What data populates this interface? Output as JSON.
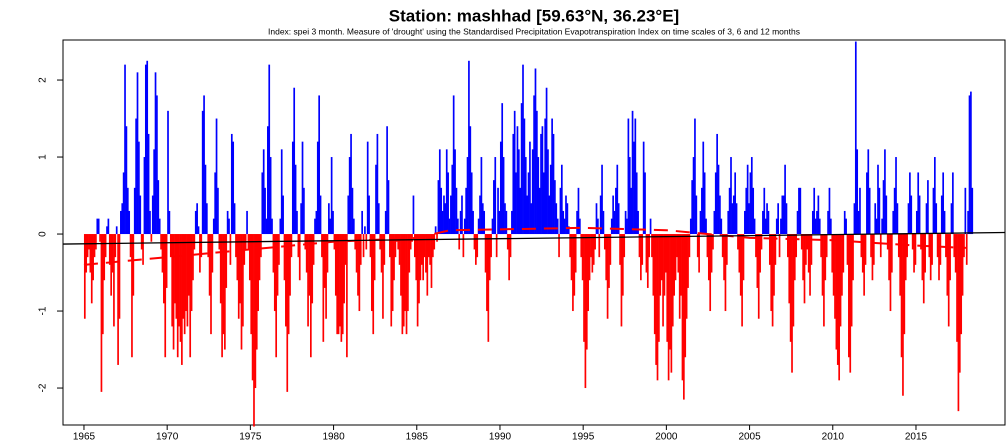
{
  "chart_data": {
    "type": "bar",
    "title": "Station: mashhad [59.63°N, 36.23°E]",
    "subtitle": "Index: spei 3 month. Measure of 'drought' using the Standardised Precipitation Evapotranspiration Index on time scales of 3, 6 and 12 months",
    "positive_color": "#0000ff",
    "negative_color": "#ff0000",
    "xlim": [
      1963.74,
      2020.35
    ],
    "ylim": [
      -2.48,
      2.52
    ],
    "xticks": [
      1965,
      1970,
      1975,
      1980,
      1985,
      1990,
      1995,
      2000,
      2005,
      2010,
      2015
    ],
    "yticks": [
      -2,
      -1,
      0,
      1,
      2
    ],
    "years": [
      {
        "year": 1965,
        "values": [
          -1.1,
          -0.5,
          -0.3,
          -0.2,
          -0.5,
          -0.9,
          -0.6,
          -0.3,
          -0.2,
          0.2,
          0.2,
          -0.1
        ]
      },
      {
        "year": 1966,
        "values": [
          -2.05,
          -1.3,
          -0.6,
          -0.3,
          0.1,
          0.2,
          -0.4,
          -0.8,
          -0.5,
          -1.2,
          -0.3,
          0.1
        ]
      },
      {
        "year": 1967,
        "values": [
          -1.7,
          -1.1,
          0.3,
          0.4,
          0.8,
          2.2,
          1.4,
          0.6,
          0.3,
          -0.3,
          -1.6,
          -0.8
        ]
      },
      {
        "year": 1968,
        "values": [
          0.6,
          1.5,
          2.1,
          1.2,
          0.5,
          -0.2,
          -0.4,
          1.0,
          2.2,
          2.25,
          1.3,
          0.3
        ]
      },
      {
        "year": 1969,
        "values": [
          -0.1,
          0.5,
          1.1,
          2.1,
          1.8,
          0.7,
          0.2,
          -0.2,
          -0.5,
          -0.9,
          -1.6,
          -0.7
        ]
      },
      {
        "year": 1970,
        "values": [
          1.6,
          0.3,
          -0.3,
          -1.2,
          -1.5,
          -0.9,
          -1.1,
          -1.6,
          -1.2,
          -1.4,
          -1.7,
          -1.1
        ]
      },
      {
        "year": 1971,
        "values": [
          -1.3,
          -1.0,
          -1.2,
          -0.8,
          -1.6,
          -1.0,
          -0.6,
          -0.2,
          0.3,
          0.4,
          0.1,
          -0.5
        ]
      },
      {
        "year": 1972,
        "values": [
          -0.3,
          1.6,
          1.8,
          0.9,
          0.4,
          -0.3,
          -0.8,
          -1.3,
          -0.5,
          0.2,
          0.8,
          1.5
        ]
      },
      {
        "year": 1973,
        "values": [
          0.6,
          -0.2,
          -0.9,
          -1.6,
          -1.3,
          -1.5,
          -0.7,
          0.3,
          0.2,
          -0.4,
          1.3,
          1.2
        ]
      },
      {
        "year": 1974,
        "values": [
          0.4,
          -0.3,
          -0.6,
          -1.1,
          -0.9,
          -1.5,
          -1.2,
          -0.4,
          -0.2,
          0.3,
          -0.2,
          -0.6
        ]
      },
      {
        "year": 1975,
        "values": [
          -1.3,
          -1.9,
          -2.5,
          -2.0,
          -1.5,
          -1.0,
          -0.6,
          -0.3,
          0.8,
          1.1,
          0.6,
          0.2
        ]
      },
      {
        "year": 1976,
        "values": [
          1.4,
          2.2,
          1.0,
          0.2,
          -0.5,
          -1.0,
          -1.6,
          -0.8,
          -0.4,
          0.2,
          1.1,
          0.5
        ]
      },
      {
        "year": 1977,
        "values": [
          -0.6,
          -1.2,
          -2.05,
          -1.3,
          -0.8,
          -0.3,
          1.2,
          1.9,
          0.9,
          0.3,
          -0.3,
          -0.6
        ]
      },
      {
        "year": 1978,
        "values": [
          0.4,
          1.2,
          0.6,
          -0.2,
          -0.5,
          -1.2,
          -0.8,
          -1.6,
          -0.9,
          -0.4,
          0.2,
          0.3
        ]
      },
      {
        "year": 1979,
        "values": [
          1.2,
          1.8,
          0.5,
          -0.3,
          -1.4,
          -0.7,
          -1.1,
          -0.5,
          0.4,
          0.2,
          1.0,
          0.3
        ]
      },
      {
        "year": 1980,
        "values": [
          -0.2,
          -0.8,
          -1.3,
          -1.3,
          -1.2,
          -1.4,
          -1.3,
          -0.9,
          -0.4,
          -1.6,
          0.5,
          1.0
        ]
      },
      {
        "year": 1981,
        "values": [
          1.3,
          0.6,
          0.2,
          -0.2,
          -0.5,
          -0.8,
          -1.0,
          -0.4,
          0.3,
          -0.3,
          0.1,
          -0.2
        ]
      },
      {
        "year": 1982,
        "values": [
          1.2,
          0.5,
          -0.3,
          -1.0,
          -1.3,
          -0.6,
          0.9,
          1.3,
          0.4,
          -0.2,
          -0.5,
          -1.1
        ]
      },
      {
        "year": 1983,
        "values": [
          -0.4,
          0.3,
          1.4,
          0.7,
          -0.3,
          -1.2,
          -1.0,
          -0.6,
          -0.3,
          -0.1,
          -0.2,
          -0.4
        ]
      },
      {
        "year": 1984,
        "values": [
          -0.8,
          -1.3,
          -1.2,
          -1.0,
          -1.3,
          -1.0,
          -0.5,
          -0.2,
          -0.1,
          0.5,
          -0.3,
          -0.6
        ]
      },
      {
        "year": 1985,
        "values": [
          -1.2,
          -0.9,
          -0.6,
          -0.4,
          -0.6,
          -0.3,
          -0.5,
          -0.8,
          -0.3,
          -0.4,
          -0.7,
          -0.3
        ]
      },
      {
        "year": 1986,
        "values": [
          -0.2,
          0.1,
          -0.1,
          0.7,
          1.1,
          0.6,
          0.3,
          0.5,
          0.4,
          1.1,
          0.8,
          0.2
        ]
      },
      {
        "year": 1987,
        "values": [
          0.5,
          0.9,
          1.8,
          1.1,
          0.6,
          0.2,
          -0.2,
          0.3,
          0.5,
          -0.3,
          0.2,
          0.6
        ]
      },
      {
        "year": 1988,
        "values": [
          1.0,
          2.25,
          1.4,
          0.8,
          0.3,
          -0.2,
          -0.4,
          -0.3,
          0.2,
          0.5,
          1.0,
          0.4
        ]
      },
      {
        "year": 1989,
        "values": [
          0.3,
          -0.5,
          -1.0,
          -1.4,
          -0.6,
          -0.3,
          0.2,
          0.7,
          1.0,
          -0.3,
          0.6,
          0.3
        ]
      },
      {
        "year": 1990,
        "values": [
          1.2,
          1.7,
          1.0,
          0.4,
          0.3,
          -0.2,
          -0.6,
          -0.3,
          0.3,
          1.3,
          1.6,
          0.8
        ]
      },
      {
        "year": 1991,
        "values": [
          1.4,
          1.1,
          0.6,
          1.7,
          2.2,
          1.5,
          1.0,
          0.5,
          0.8,
          1.2,
          0.4,
          1.1
        ]
      },
      {
        "year": 1992,
        "values": [
          1.8,
          2.15,
          1.6,
          1.0,
          0.6,
          1.3,
          1.4,
          0.8,
          1.5,
          1.9,
          1.1,
          0.5
        ]
      },
      {
        "year": 1993,
        "values": [
          0.9,
          1.5,
          1.3,
          0.7,
          0.4,
          0.2,
          -0.3,
          0.6,
          0.9,
          0.3,
          0.2,
          0.5
        ]
      },
      {
        "year": 1994,
        "values": [
          0.4,
          0.1,
          -0.3,
          -0.6,
          -1.0,
          -0.8,
          -0.5,
          0.3,
          0.6,
          0.2,
          -0.3,
          -0.6
        ]
      },
      {
        "year": 1995,
        "values": [
          -1.4,
          -2.0,
          -1.5,
          -1.0,
          -0.6,
          -0.3,
          -0.5,
          -0.4,
          -0.2,
          0.4,
          0.2,
          -0.3
        ]
      },
      {
        "year": 1996,
        "values": [
          0.5,
          0.9,
          0.3,
          -0.2,
          -0.6,
          -1.1,
          -0.7,
          -0.4,
          0.2,
          0.5,
          0.3,
          0.6
        ]
      },
      {
        "year": 1997,
        "values": [
          0.9,
          0.4,
          -0.4,
          -1.2,
          -0.8,
          -0.3,
          0.3,
          0.2,
          1.5,
          1.0,
          0.6,
          1.6
        ]
      },
      {
        "year": 1998,
        "values": [
          1.2,
          1.5,
          0.8,
          0.3,
          -0.3,
          -0.6,
          -0.4,
          1.2,
          0.8,
          -0.5,
          -0.7,
          -0.3
        ]
      },
      {
        "year": 1999,
        "values": [
          0.2,
          -0.3,
          -0.8,
          -1.3,
          -1.7,
          -1.9,
          -1.4,
          -0.8,
          -0.6,
          -1.2,
          -0.8,
          -0.5
        ]
      },
      {
        "year": 2000,
        "values": [
          -1.4,
          -1.9,
          -1.5,
          -1.8,
          -1.2,
          -0.8,
          -0.6,
          -0.3,
          -0.5,
          -1.1,
          -0.8,
          -1.9
        ]
      },
      {
        "year": 2001,
        "values": [
          -2.15,
          -1.6,
          -1.1,
          -0.7,
          -0.3,
          0.2,
          0.7,
          1.0,
          1.5,
          0.5,
          -0.3,
          -0.5
        ]
      },
      {
        "year": 2002,
        "values": [
          0.3,
          0.6,
          1.2,
          0.8,
          0.2,
          -0.3,
          -0.6,
          -1.0,
          -0.5,
          -0.2,
          0.3,
          0.8
        ]
      },
      {
        "year": 2003,
        "values": [
          1.3,
          0.9,
          0.5,
          0.2,
          -0.3,
          -0.6,
          -1.0,
          -0.4,
          0.3,
          0.6,
          1.0,
          0.4
        ]
      },
      {
        "year": 2004,
        "values": [
          0.5,
          0.8,
          0.4,
          -0.2,
          -0.5,
          -0.8,
          -1.2,
          -0.6,
          0.3,
          0.6,
          0.9,
          0.4
        ]
      },
      {
        "year": 2005,
        "values": [
          0.8,
          1.0,
          0.6,
          0.2,
          -0.3,
          -0.7,
          -1.1,
          -0.5,
          -0.2,
          0.3,
          0.6,
          0.2
        ]
      },
      {
        "year": 2006,
        "values": [
          0.4,
          0.3,
          -0.4,
          -1.0,
          -1.2,
          -0.8,
          -0.4,
          0.2,
          0.4,
          -0.3,
          0.2,
          0.5
        ]
      },
      {
        "year": 2007,
        "values": [
          0.5,
          0.9,
          0.4,
          -0.3,
          -0.9,
          -1.4,
          -1.8,
          -1.2,
          -0.6,
          -0.3,
          0.3,
          0.6
        ]
      },
      {
        "year": 2008,
        "values": [
          0.6,
          -0.2,
          -0.6,
          -0.9,
          -0.4,
          -0.2,
          -0.5,
          -0.8,
          -0.4,
          0.3,
          0.6,
          0.2
        ]
      },
      {
        "year": 2009,
        "values": [
          0.3,
          0.5,
          0.2,
          -0.3,
          -0.8,
          -1.2,
          -0.6,
          -0.3,
          0.3,
          0.6,
          0.2,
          -0.5
        ]
      },
      {
        "year": 2010,
        "values": [
          -0.8,
          -1.1,
          -1.5,
          -1.7,
          -1.9,
          -1.2,
          -0.8,
          -0.5,
          0.3,
          0.2,
          -0.4,
          -1.6
        ]
      },
      {
        "year": 2011,
        "values": [
          -1.8,
          -1.2,
          -0.6,
          0.4,
          2.5,
          1.1,
          0.3,
          0.6,
          -0.3,
          -0.5,
          -0.8,
          -0.4
        ]
      },
      {
        "year": 2012,
        "values": [
          0.8,
          1.1,
          0.6,
          -0.3,
          -0.6,
          -0.4,
          0.4,
          0.2,
          0.9,
          0.6,
          -0.3,
          0.2
        ]
      },
      {
        "year": 2013,
        "values": [
          0.7,
          1.1,
          0.5,
          -0.2,
          -0.6,
          -1.0,
          -0.5,
          0.3,
          0.6,
          1.0,
          0.4,
          -0.3
        ]
      },
      {
        "year": 2014,
        "values": [
          -0.8,
          -1.6,
          -2.1,
          -1.3,
          -0.6,
          -0.3,
          0.4,
          0.8,
          0.5,
          -0.2,
          -0.5,
          -0.4
        ]
      },
      {
        "year": 2015,
        "values": [
          0.3,
          0.8,
          0.5,
          -0.2,
          -0.6,
          -0.9,
          -0.5,
          0.4,
          0.7,
          -0.3,
          -0.6,
          -0.4
        ]
      },
      {
        "year": 2016,
        "values": [
          0.6,
          1.0,
          0.4,
          -0.3,
          -0.6,
          -0.4,
          0.5,
          0.8,
          0.3,
          -0.3,
          -0.8,
          -1.2
        ]
      },
      {
        "year": 2017,
        "values": [
          -0.6,
          0.4,
          0.8,
          -0.3,
          -0.5,
          -1.4,
          -2.3,
          -1.8,
          -1.3,
          -0.8,
          -0.3,
          0.6
        ]
      },
      {
        "year": 2018,
        "values": [
          -0.4,
          0.3,
          1.8,
          1.85,
          0.6
        ]
      }
    ],
    "trend": {
      "color": "#000000",
      "x": [
        1963.74,
        2020.35
      ],
      "values": [
        -0.13,
        0.02
      ]
    },
    "smooth": {
      "color": "#ff0000",
      "x": [
        1965,
        1970,
        1975,
        1980,
        1985,
        1987,
        1995,
        2000,
        2005,
        2010,
        2015,
        2018
      ],
      "values": [
        -0.4,
        -0.3,
        -0.2,
        -0.1,
        -0.05,
        0.05,
        0.08,
        0.05,
        -0.05,
        -0.08,
        -0.15,
        -0.18
      ]
    }
  }
}
